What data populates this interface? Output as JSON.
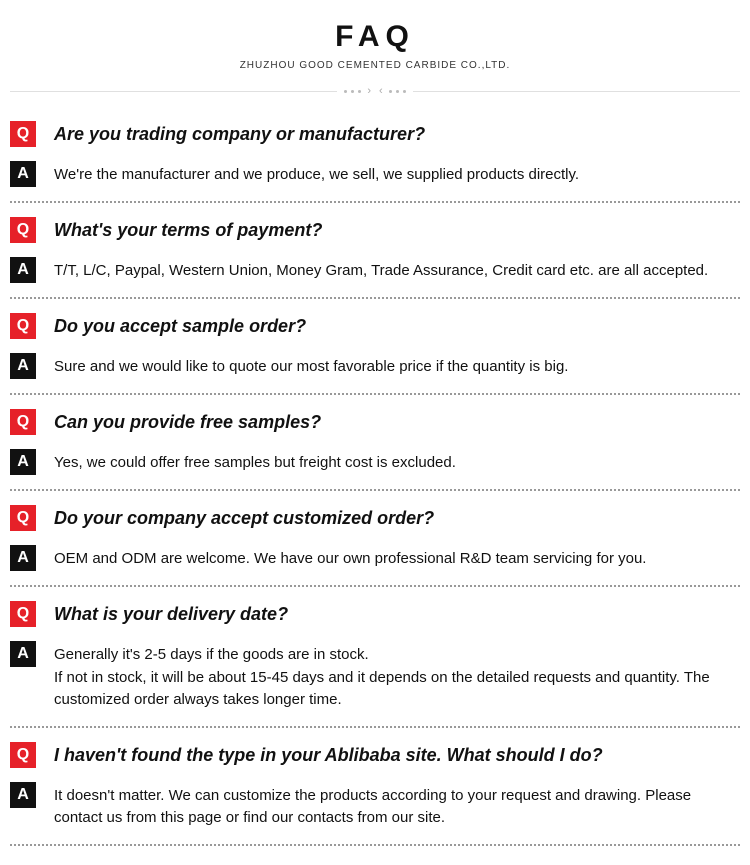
{
  "header": {
    "title": "FAQ",
    "subtitle": "ZHUZHOU GOOD CEMENTED CARBIDE CO.,LTD."
  },
  "badges": {
    "q": "Q",
    "a": "A"
  },
  "colors": {
    "q_badge_bg": "#e62129",
    "a_badge_bg": "#111111",
    "badge_fg": "#ffffff",
    "dotted_border": "#999999",
    "hline": "#e0e0e0",
    "nav_dot": "#bbbbbb"
  },
  "items": [
    {
      "q": "Are you trading company or manufacturer?",
      "a": "We're the manufacturer and we produce, we sell, we supplied products directly."
    },
    {
      "q": "What's your terms of payment?",
      "a": "T/T, L/C, Paypal, Western Union, Money Gram, Trade Assurance, Credit card etc. are all accepted."
    },
    {
      "q": "Do you accept sample order?",
      "a": "Sure and we would like to quote our most favorable price if the quantity is big."
    },
    {
      "q": "Can you provide free samples?",
      "a": "Yes, we could offer free samples but freight cost is excluded."
    },
    {
      "q": "Do your company accept customized order?",
      "a": "OEM and ODM are welcome. We have our own professional R&D team servicing for you."
    },
    {
      "q": "What is your delivery date?",
      "a": "Generally it's 2-5 days if the goods are in stock.\nIf not in stock, it will be about 15-45 days and it depends on the detailed requests and quantity. The customized order always takes longer time."
    },
    {
      "q": "I haven't found the type in your Ablibaba site. What should I do?",
      "a": "It doesn't matter. We can customize the products according to your request and drawing. Please contact us from this page or find our contacts from our site."
    }
  ]
}
